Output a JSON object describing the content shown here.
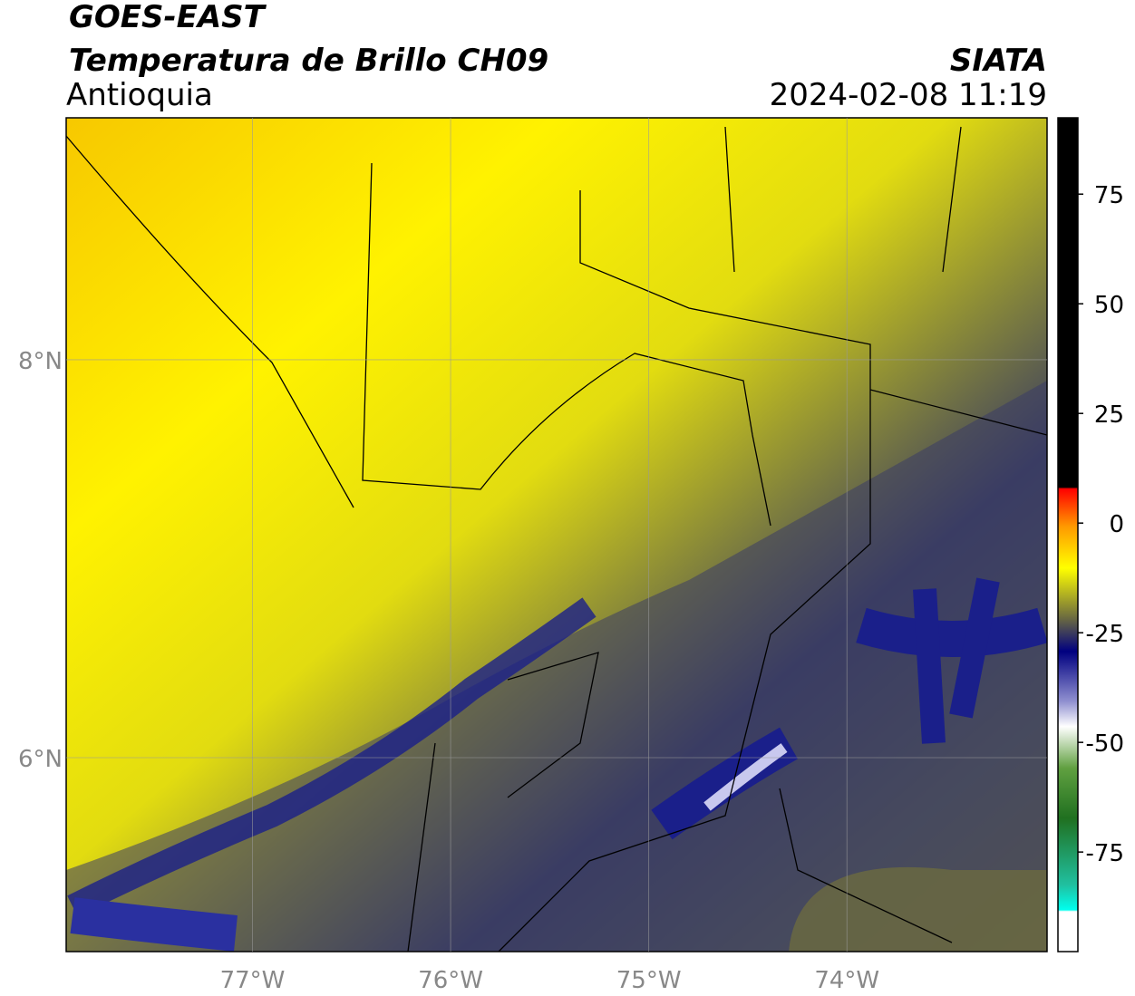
{
  "header": {
    "title_line1": "GOES-EAST",
    "title_line2": "Temperatura de Brillo CH09",
    "region": "Antioquia",
    "source": "SIATA",
    "timestamp": "2024-02-08 11:19"
  },
  "map": {
    "xlim": [
      -77.94,
      -72.99
    ],
    "ylim": [
      5.025,
      9.216
    ],
    "xticks": [
      {
        "value": -77,
        "label": "77°W"
      },
      {
        "value": -76,
        "label": "76°W"
      },
      {
        "value": -75,
        "label": "75°W"
      },
      {
        "value": -74,
        "label": "74°W"
      }
    ],
    "yticks": [
      {
        "value": 8,
        "label": "8°N"
      },
      {
        "value": 6,
        "label": "6°N"
      }
    ]
  },
  "colorbar": {
    "lim": [
      -97.7,
      92.4
    ],
    "ticks": [
      75,
      50,
      25,
      0,
      -25,
      -50,
      -75
    ]
  }
}
